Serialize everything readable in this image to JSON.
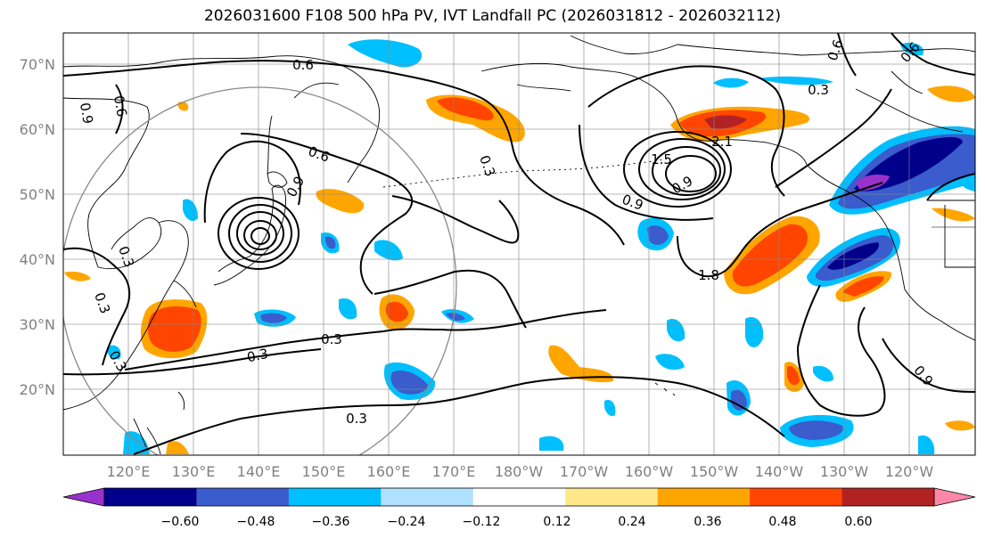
{
  "title": "2026031600 F108 500 hPa PV, IVT Landfall PC (2026031812 - 2026032112)",
  "map": {
    "lat_ticks": [
      "70°N",
      "60°N",
      "50°N",
      "40°N",
      "30°N",
      "20°N"
    ],
    "lon_ticks": [
      "120°E",
      "130°E",
      "140°E",
      "150°E",
      "160°E",
      "170°E",
      "180°W",
      "170°W",
      "160°W",
      "150°W",
      "140°W",
      "130°W",
      "120°W"
    ],
    "contour_labels": [
      "0.6",
      "0.6",
      "0.6",
      "0.9",
      "0.9",
      "0.3",
      "0.3",
      "0.3",
      "0.3",
      "0.3",
      "0.3",
      "0.3",
      "0.9",
      "0.9",
      "1.8",
      "1.5",
      "2.1",
      "0.9",
      "0.3",
      "0.6",
      "0.6"
    ],
    "colors": {
      "land_line": "#000000",
      "grid": "#888888",
      "contour": "#000000"
    }
  },
  "colorbar": {
    "ticks": [
      "−0.60",
      "−0.48",
      "−0.36",
      "−0.24",
      "−0.12",
      "0.12",
      "0.24",
      "0.36",
      "0.48",
      "0.60"
    ],
    "colors": [
      "#9932cc",
      "#00008b",
      "#3a5ccc",
      "#00bfff",
      "#b0e0ff",
      "#ffffff",
      "#ffe88a",
      "#ffa500",
      "#ff4500",
      "#b22222",
      "#ff88aa"
    ]
  }
}
